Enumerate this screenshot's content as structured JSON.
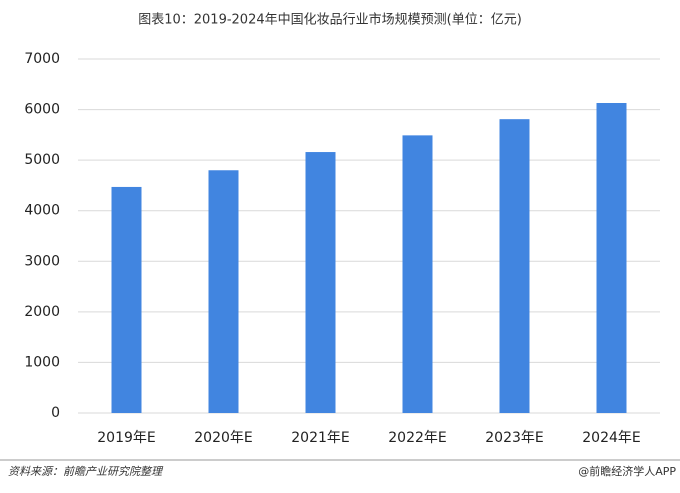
{
  "chart_data": {
    "type": "bar",
    "title": "图表10：2019-2024年中国化妆品行业市场规模预测(单位：亿元)",
    "categories": [
      "2019年E",
      "2020年E",
      "2021年E",
      "2022年E",
      "2023年E",
      "2024年E"
    ],
    "values": [
      4470,
      4800,
      5160,
      5490,
      5810,
      6130
    ],
    "color": "#4185e0",
    "ylim": [
      0,
      7000
    ],
    "yticks": [
      0,
      1000,
      2000,
      3000,
      4000,
      5000,
      6000,
      7000
    ],
    "grid": true,
    "source": "资料来源：前瞻产业研究院整理",
    "credit": "@前瞻经济学人APP"
  }
}
